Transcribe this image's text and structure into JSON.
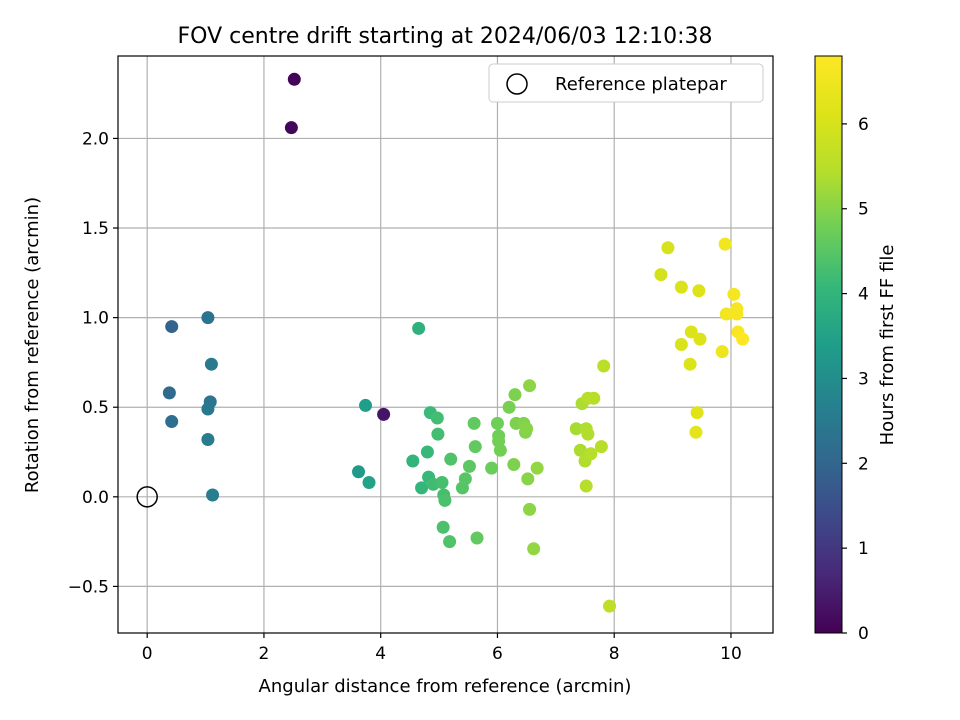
{
  "chart_data": {
    "type": "scatter",
    "title": "FOV centre drift starting at 2024/06/03 12:10:38",
    "xlabel": "Angular distance from reference (arcmin)",
    "ylabel": "Rotation from reference (arcmin)",
    "xlim": [
      -0.5,
      10.72
    ],
    "ylim": [
      -0.76,
      2.46
    ],
    "xticks": [
      0,
      2,
      4,
      6,
      8,
      10
    ],
    "yticks": [
      -0.5,
      0.0,
      0.5,
      1.0,
      1.5,
      2.0
    ],
    "xtick_labels": [
      "0",
      "2",
      "4",
      "6",
      "8",
      "10"
    ],
    "ytick_labels": [
      "−0.5",
      "0.0",
      "0.5",
      "1.0",
      "1.5",
      "2.0"
    ],
    "grid": true,
    "legend": {
      "position": "top-right",
      "entries": [
        "Reference platepar"
      ]
    },
    "colorbar": {
      "label": "Hours from first FF file",
      "range": [
        0,
        6.8
      ],
      "ticks": [
        0,
        1,
        2,
        3,
        4,
        5,
        6
      ],
      "tick_labels": [
        "0",
        "1",
        "2",
        "3",
        "4",
        "5",
        "6"
      ],
      "colormap": "viridis"
    },
    "reference_point": {
      "x": 0,
      "y": 0
    },
    "points": [
      {
        "x": 2.52,
        "y": 2.33,
        "c": 0.05
      },
      {
        "x": 2.47,
        "y": 2.06,
        "c": 0.08
      },
      {
        "x": 4.05,
        "y": 0.46,
        "c": 0.35
      },
      {
        "x": 0.42,
        "y": 0.95,
        "c": 1.95
      },
      {
        "x": 0.38,
        "y": 0.58,
        "c": 2.1
      },
      {
        "x": 0.42,
        "y": 0.42,
        "c": 2.2
      },
      {
        "x": 1.04,
        "y": 1.0,
        "c": 2.3
      },
      {
        "x": 1.1,
        "y": 0.74,
        "c": 2.5
      },
      {
        "x": 1.08,
        "y": 0.53,
        "c": 2.4
      },
      {
        "x": 1.04,
        "y": 0.49,
        "c": 2.45
      },
      {
        "x": 1.04,
        "y": 0.32,
        "c": 2.55
      },
      {
        "x": 1.12,
        "y": 0.01,
        "c": 2.6
      },
      {
        "x": 3.62,
        "y": 0.14,
        "c": 3.3
      },
      {
        "x": 3.74,
        "y": 0.51,
        "c": 3.4
      },
      {
        "x": 3.8,
        "y": 0.08,
        "c": 3.5
      },
      {
        "x": 4.65,
        "y": 0.94,
        "c": 3.9
      },
      {
        "x": 4.55,
        "y": 0.2,
        "c": 4.0
      },
      {
        "x": 4.7,
        "y": 0.05,
        "c": 4.05
      },
      {
        "x": 4.8,
        "y": 0.25,
        "c": 4.1
      },
      {
        "x": 4.82,
        "y": 0.11,
        "c": 4.1
      },
      {
        "x": 4.85,
        "y": 0.47,
        "c": 4.15
      },
      {
        "x": 4.9,
        "y": 0.07,
        "c": 4.2
      },
      {
        "x": 4.97,
        "y": 0.44,
        "c": 4.25
      },
      {
        "x": 4.98,
        "y": 0.35,
        "c": 4.25
      },
      {
        "x": 5.05,
        "y": 0.08,
        "c": 4.3
      },
      {
        "x": 5.08,
        "y": 0.01,
        "c": 4.3
      },
      {
        "x": 5.1,
        "y": -0.02,
        "c": 4.35
      },
      {
        "x": 5.07,
        "y": -0.17,
        "c": 4.35
      },
      {
        "x": 5.18,
        "y": -0.25,
        "c": 4.4
      },
      {
        "x": 5.2,
        "y": 0.21,
        "c": 4.4
      },
      {
        "x": 5.4,
        "y": 0.05,
        "c": 4.45
      },
      {
        "x": 5.45,
        "y": 0.1,
        "c": 4.5
      },
      {
        "x": 5.52,
        "y": 0.17,
        "c": 4.55
      },
      {
        "x": 5.6,
        "y": 0.41,
        "c": 4.6
      },
      {
        "x": 5.62,
        "y": 0.28,
        "c": 4.6
      },
      {
        "x": 5.65,
        "y": -0.23,
        "c": 4.6
      },
      {
        "x": 5.9,
        "y": 0.16,
        "c": 4.7
      },
      {
        "x": 6.0,
        "y": 0.41,
        "c": 4.75
      },
      {
        "x": 6.02,
        "y": 0.34,
        "c": 4.75
      },
      {
        "x": 6.02,
        "y": 0.31,
        "c": 4.8
      },
      {
        "x": 6.05,
        "y": 0.26,
        "c": 4.8
      },
      {
        "x": 6.2,
        "y": 0.5,
        "c": 4.85
      },
      {
        "x": 6.28,
        "y": 0.18,
        "c": 4.9
      },
      {
        "x": 6.3,
        "y": 0.57,
        "c": 4.9
      },
      {
        "x": 6.32,
        "y": 0.41,
        "c": 4.9
      },
      {
        "x": 6.45,
        "y": 0.41,
        "c": 4.95
      },
      {
        "x": 6.48,
        "y": 0.36,
        "c": 4.95
      },
      {
        "x": 6.5,
        "y": 0.38,
        "c": 5.0
      },
      {
        "x": 6.52,
        "y": 0.1,
        "c": 5.0
      },
      {
        "x": 6.55,
        "y": 0.62,
        "c": 5.05
      },
      {
        "x": 6.55,
        "y": -0.07,
        "c": 5.05
      },
      {
        "x": 6.62,
        "y": -0.29,
        "c": 5.1
      },
      {
        "x": 6.68,
        "y": 0.16,
        "c": 5.1
      },
      {
        "x": 7.35,
        "y": 0.38,
        "c": 5.3
      },
      {
        "x": 7.42,
        "y": 0.26,
        "c": 5.35
      },
      {
        "x": 7.45,
        "y": 0.52,
        "c": 5.35
      },
      {
        "x": 7.5,
        "y": 0.2,
        "c": 5.4
      },
      {
        "x": 7.52,
        "y": 0.38,
        "c": 5.4
      },
      {
        "x": 7.55,
        "y": 0.35,
        "c": 5.4
      },
      {
        "x": 7.55,
        "y": 0.55,
        "c": 5.45
      },
      {
        "x": 7.52,
        "y": 0.06,
        "c": 5.45
      },
      {
        "x": 7.6,
        "y": 0.24,
        "c": 5.45
      },
      {
        "x": 7.65,
        "y": 0.55,
        "c": 5.5
      },
      {
        "x": 7.78,
        "y": 0.28,
        "c": 5.5
      },
      {
        "x": 7.82,
        "y": 0.73,
        "c": 5.55
      },
      {
        "x": 7.92,
        "y": -0.61,
        "c": 5.6
      },
      {
        "x": 8.8,
        "y": 1.24,
        "c": 5.95
      },
      {
        "x": 8.92,
        "y": 1.39,
        "c": 6.0
      },
      {
        "x": 9.15,
        "y": 1.17,
        "c": 6.05
      },
      {
        "x": 9.15,
        "y": 0.85,
        "c": 6.05
      },
      {
        "x": 9.3,
        "y": 0.74,
        "c": 6.1
      },
      {
        "x": 9.32,
        "y": 0.92,
        "c": 6.1
      },
      {
        "x": 9.42,
        "y": 0.47,
        "c": 6.2
      },
      {
        "x": 9.4,
        "y": 0.36,
        "c": 6.25
      },
      {
        "x": 9.45,
        "y": 1.15,
        "c": 6.15
      },
      {
        "x": 9.47,
        "y": 0.88,
        "c": 6.15
      },
      {
        "x": 9.85,
        "y": 0.81,
        "c": 6.5
      },
      {
        "x": 9.9,
        "y": 1.41,
        "c": 6.55
      },
      {
        "x": 9.92,
        "y": 1.02,
        "c": 6.55
      },
      {
        "x": 10.05,
        "y": 1.13,
        "c": 6.6
      },
      {
        "x": 10.1,
        "y": 1.05,
        "c": 6.65
      },
      {
        "x": 10.1,
        "y": 1.02,
        "c": 6.65
      },
      {
        "x": 10.12,
        "y": 0.92,
        "c": 6.7
      },
      {
        "x": 10.2,
        "y": 0.88,
        "c": 6.75
      }
    ]
  }
}
